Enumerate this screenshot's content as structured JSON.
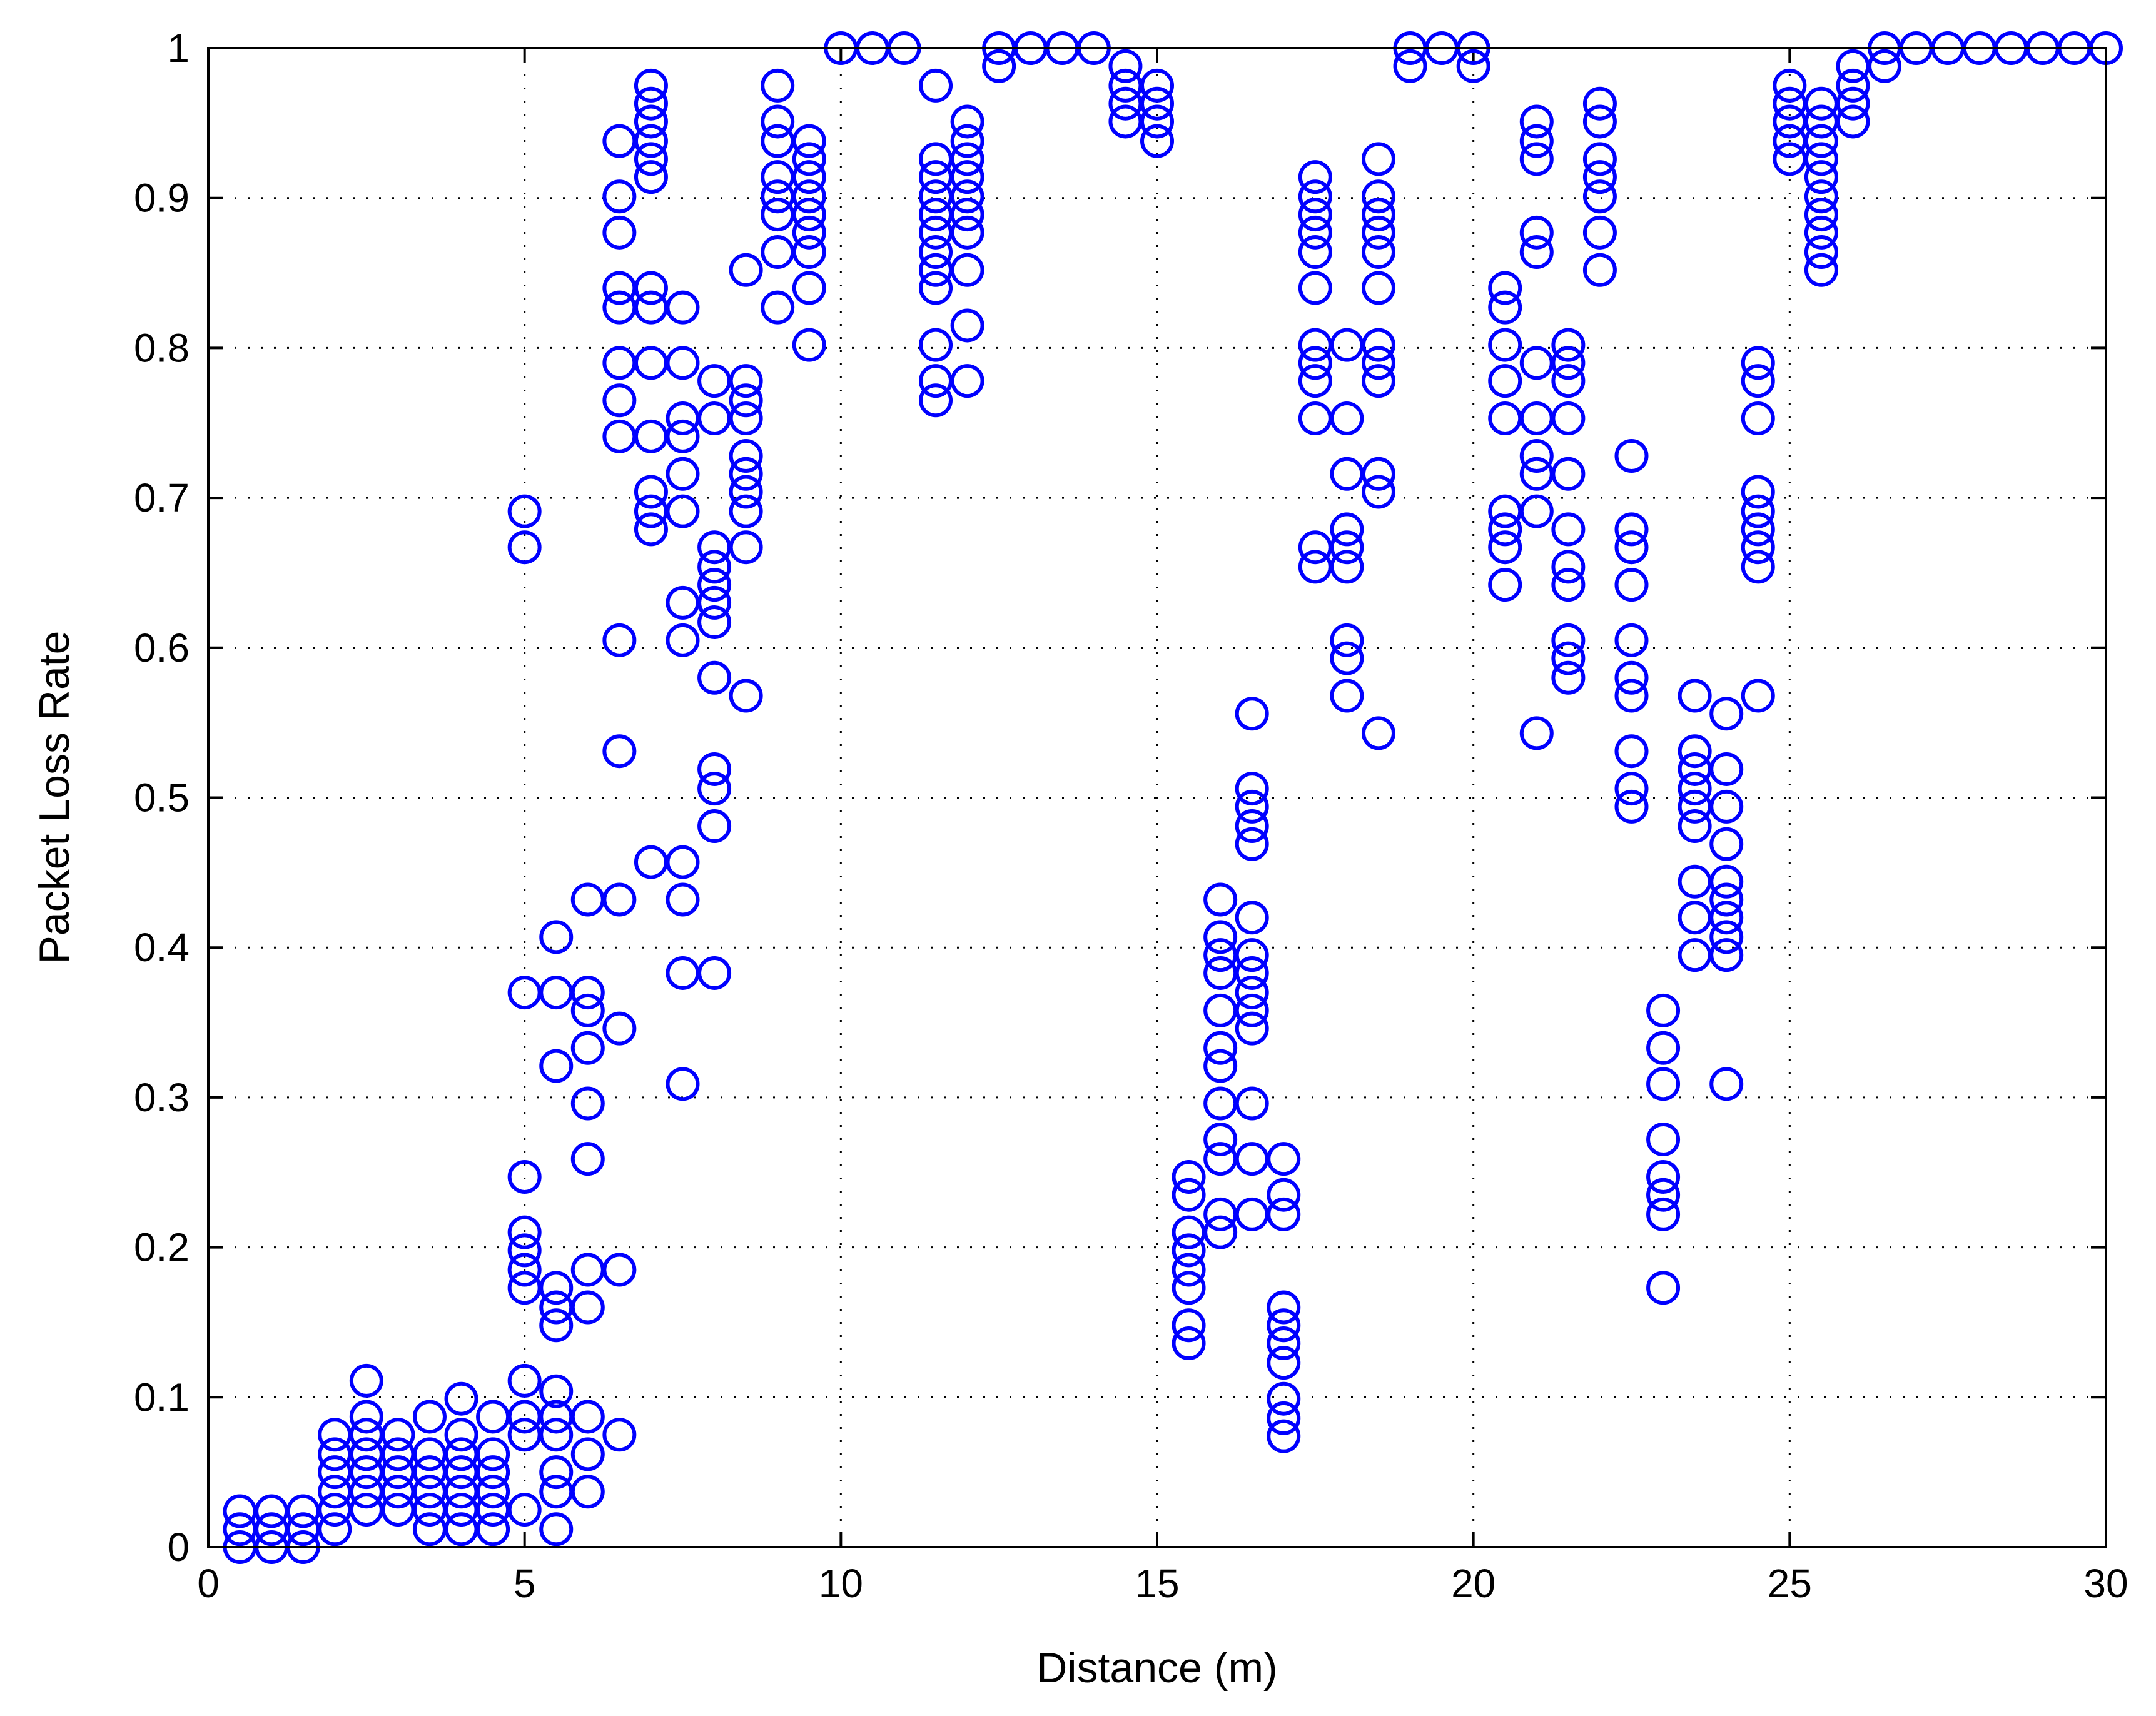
{
  "chart_data": {
    "type": "scatter",
    "title": "",
    "xlabel": "Distance (m)",
    "ylabel": "Packet Loss Rate",
    "xlim": [
      0,
      30
    ],
    "ylim": [
      0,
      1
    ],
    "xticks": [
      0,
      5,
      10,
      15,
      20,
      25,
      30
    ],
    "yticks": [
      0,
      0.1,
      0.2,
      0.3,
      0.4,
      0.5,
      0.6,
      0.7,
      0.8,
      0.9,
      1
    ],
    "ytick_labels": [
      "0",
      "0.1",
      "0.2",
      "0.3",
      "0.4",
      "0.5",
      "0.6",
      "0.7",
      "0.8",
      "0.9",
      "1"
    ],
    "grid": true,
    "marker": "circle-open",
    "color": "#0000ff",
    "series": [
      {
        "points_by_x": [
          {
            "x": 0.5,
            "y": [
              0,
              0.012,
              0.024
            ]
          },
          {
            "x": 1,
            "y": [
              0,
              0.012,
              0.024
            ]
          },
          {
            "x": 1.5,
            "y": [
              0,
              0.012,
              0.024
            ]
          },
          {
            "x": 2,
            "y": [
              0.012,
              0.025,
              0.037,
              0.05,
              0.062,
              0.075
            ]
          },
          {
            "x": 2.5,
            "y": [
              0.025,
              0.037,
              0.05,
              0.062,
              0.075,
              0.087,
              0.111
            ]
          },
          {
            "x": 3,
            "y": [
              0.025,
              0.037,
              0.05,
              0.062,
              0.075
            ]
          },
          {
            "x": 3.5,
            "y": [
              0.012,
              0.025,
              0.037,
              0.05,
              0.062,
              0.087
            ]
          },
          {
            "x": 4,
            "y": [
              0.012,
              0.025,
              0.037,
              0.05,
              0.062,
              0.075,
              0.099
            ]
          },
          {
            "x": 4.5,
            "y": [
              0.012,
              0.025,
              0.037,
              0.05,
              0.062,
              0.087
            ]
          },
          {
            "x": 5,
            "y": [
              0.025,
              0.075,
              0.087,
              0.111,
              0.173,
              0.185,
              0.198,
              0.21,
              0.247,
              0.37,
              0.667,
              0.691
            ]
          },
          {
            "x": 5.5,
            "y": [
              0.012,
              0.037,
              0.05,
              0.075,
              0.087,
              0.104,
              0.148,
              0.16,
              0.173,
              0.321,
              0.37,
              0.407
            ]
          },
          {
            "x": 6,
            "y": [
              0.037,
              0.062,
              0.087,
              0.16,
              0.185,
              0.259,
              0.296,
              0.333,
              0.358,
              0.37,
              0.432
            ]
          },
          {
            "x": 6.5,
            "y": [
              0.075,
              0.185,
              0.346,
              0.432,
              0.531,
              0.605,
              0.741,
              0.765,
              0.79,
              0.827,
              0.84,
              0.877,
              0.901,
              0.938
            ]
          },
          {
            "x": 7,
            "y": [
              0.457,
              0.679,
              0.691,
              0.704,
              0.741,
              0.79,
              0.827,
              0.84,
              0.914,
              0.926,
              0.938,
              0.951,
              0.963,
              0.975
            ]
          },
          {
            "x": 7.5,
            "y": [
              0.309,
              0.383,
              0.432,
              0.457,
              0.605,
              0.63,
              0.691,
              0.716,
              0.741,
              0.753,
              0.79,
              0.827
            ]
          },
          {
            "x": 8,
            "y": [
              0.383,
              0.481,
              0.506,
              0.519,
              0.58,
              0.617,
              0.63,
              0.642,
              0.654,
              0.667,
              0.753,
              0.778
            ]
          },
          {
            "x": 8.5,
            "y": [
              0.568,
              0.667,
              0.691,
              0.704,
              0.716,
              0.728,
              0.753,
              0.765,
              0.778,
              0.852
            ]
          },
          {
            "x": 9,
            "y": [
              0.827,
              0.864,
              0.889,
              0.901,
              0.914,
              0.938,
              0.951,
              0.975
            ]
          },
          {
            "x": 9.5,
            "y": [
              0.802,
              0.84,
              0.864,
              0.877,
              0.889,
              0.901,
              0.914,
              0.926,
              0.938
            ]
          },
          {
            "x": 10,
            "y": [
              1
            ]
          },
          {
            "x": 10.5,
            "y": [
              1
            ]
          },
          {
            "x": 11,
            "y": [
              1
            ]
          },
          {
            "x": 11.5,
            "y": [
              0.765,
              0.778,
              0.802,
              0.84,
              0.852,
              0.864,
              0.877,
              0.889,
              0.901,
              0.914,
              0.926,
              0.975
            ]
          },
          {
            "x": 12,
            "y": [
              0.778,
              0.815,
              0.852,
              0.877,
              0.889,
              0.901,
              0.914,
              0.926,
              0.938,
              0.951
            ]
          },
          {
            "x": 12.5,
            "y": [
              0.988,
              1
            ]
          },
          {
            "x": 13,
            "y": [
              1
            ]
          },
          {
            "x": 13.5,
            "y": [
              1
            ]
          },
          {
            "x": 14,
            "y": [
              1
            ]
          },
          {
            "x": 14.5,
            "y": [
              0.951,
              0.963,
              0.975,
              0.988
            ]
          },
          {
            "x": 15,
            "y": [
              0.938,
              0.951,
              0.963,
              0.975
            ]
          },
          {
            "x": 15.5,
            "y": [
              0.136,
              0.148,
              0.173,
              0.185,
              0.198,
              0.21,
              0.235,
              0.247
            ]
          },
          {
            "x": 16,
            "y": [
              0.21,
              0.222,
              0.259,
              0.272,
              0.296,
              0.321,
              0.333,
              0.358,
              0.383,
              0.395,
              0.407,
              0.432
            ]
          },
          {
            "x": 16.5,
            "y": [
              0.222,
              0.259,
              0.296,
              0.346,
              0.358,
              0.37,
              0.383,
              0.395,
              0.42,
              0.469,
              0.481,
              0.494,
              0.506,
              0.556
            ]
          },
          {
            "x": 17,
            "y": [
              0.074,
              0.086,
              0.099,
              0.123,
              0.136,
              0.148,
              0.16,
              0.222,
              0.235,
              0.259
            ]
          },
          {
            "x": 17.5,
            "y": [
              0.654,
              0.667,
              0.753,
              0.778,
              0.79,
              0.802,
              0.84,
              0.864,
              0.877,
              0.889,
              0.901,
              0.914
            ]
          },
          {
            "x": 18,
            "y": [
              0.568,
              0.593,
              0.605,
              0.654,
              0.667,
              0.679,
              0.716,
              0.753,
              0.802
            ]
          },
          {
            "x": 18.5,
            "y": [
              0.543,
              0.704,
              0.716,
              0.778,
              0.79,
              0.802,
              0.84,
              0.864,
              0.877,
              0.889,
              0.901,
              0.926
            ]
          },
          {
            "x": 19,
            "y": [
              0.988,
              1
            ]
          },
          {
            "x": 19.5,
            "y": [
              1
            ]
          },
          {
            "x": 20,
            "y": [
              0.988,
              1
            ]
          },
          {
            "x": 20.5,
            "y": [
              0.642,
              0.667,
              0.679,
              0.691,
              0.753,
              0.778,
              0.802,
              0.827,
              0.84
            ]
          },
          {
            "x": 21,
            "y": [
              0.543,
              0.691,
              0.716,
              0.728,
              0.753,
              0.79,
              0.864,
              0.877,
              0.926,
              0.938,
              0.951
            ]
          },
          {
            "x": 21.5,
            "y": [
              0.58,
              0.593,
              0.605,
              0.642,
              0.654,
              0.679,
              0.716,
              0.753,
              0.778,
              0.79,
              0.802
            ]
          },
          {
            "x": 22,
            "y": [
              0.852,
              0.877,
              0.901,
              0.914,
              0.926,
              0.951,
              0.963
            ]
          },
          {
            "x": 22.5,
            "y": [
              0.494,
              0.506,
              0.531,
              0.568,
              0.58,
              0.605,
              0.642,
              0.667,
              0.679,
              0.728
            ]
          },
          {
            "x": 23,
            "y": [
              0.173,
              0.222,
              0.235,
              0.247,
              0.272,
              0.309,
              0.333,
              0.358
            ]
          },
          {
            "x": 23.5,
            "y": [
              0.395,
              0.42,
              0.444,
              0.481,
              0.494,
              0.506,
              0.519,
              0.531,
              0.568
            ]
          },
          {
            "x": 24,
            "y": [
              0.309,
              0.395,
              0.407,
              0.42,
              0.432,
              0.444,
              0.469,
              0.494,
              0.519,
              0.556
            ]
          },
          {
            "x": 24.5,
            "y": [
              0.568,
              0.654,
              0.667,
              0.679,
              0.691,
              0.704,
              0.753,
              0.778,
              0.79
            ]
          },
          {
            "x": 25,
            "y": [
              0.926,
              0.938,
              0.951,
              0.963,
              0.975
            ]
          },
          {
            "x": 25.5,
            "y": [
              0.852,
              0.864,
              0.877,
              0.889,
              0.901,
              0.914,
              0.926,
              0.938,
              0.951,
              0.963
            ]
          },
          {
            "x": 26,
            "y": [
              0.951,
              0.963,
              0.975,
              0.988
            ]
          },
          {
            "x": 26.5,
            "y": [
              0.988,
              1
            ]
          },
          {
            "x": 27,
            "y": [
              1
            ]
          },
          {
            "x": 27.5,
            "y": [
              1
            ]
          },
          {
            "x": 28,
            "y": [
              1
            ]
          },
          {
            "x": 28.5,
            "y": [
              1
            ]
          },
          {
            "x": 29,
            "y": [
              1
            ]
          },
          {
            "x": 29.5,
            "y": [
              1
            ]
          },
          {
            "x": 30,
            "y": [
              1
            ]
          }
        ]
      }
    ]
  }
}
